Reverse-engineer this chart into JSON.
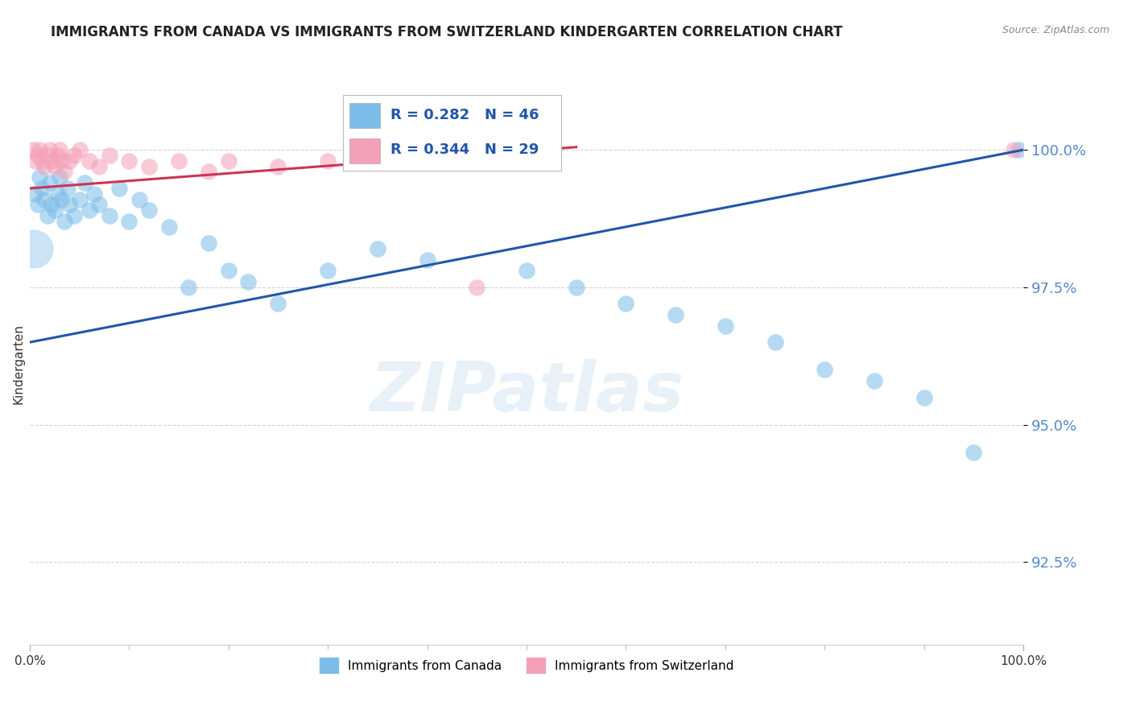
{
  "title": "IMMIGRANTS FROM CANADA VS IMMIGRANTS FROM SWITZERLAND KINDERGARTEN CORRELATION CHART",
  "source_text": "Source: ZipAtlas.com",
  "ylabel": "Kindergarten",
  "xmin": 0.0,
  "xmax": 100.0,
  "ymin": 91.0,
  "ymax": 101.2,
  "yticks": [
    92.5,
    95.0,
    97.5,
    100.0
  ],
  "ytick_labels": [
    "92.5%",
    "95.0%",
    "97.5%",
    "100.0%"
  ],
  "xtick_labels": [
    "0.0%",
    "100.0%"
  ],
  "blue_R": 0.282,
  "blue_N": 46,
  "pink_R": 0.344,
  "pink_N": 29,
  "blue_color": "#7bbce8",
  "pink_color": "#f4a0b8",
  "blue_line_color": "#2255aa",
  "pink_line_color": "#cc3355",
  "legend_blue": "Immigrants from Canada",
  "legend_pink": "Immigrants from Switzerland",
  "blue_scatter_x": [
    0.5,
    0.8,
    1.0,
    1.2,
    1.5,
    1.8,
    2.0,
    2.2,
    2.5,
    2.8,
    3.0,
    3.2,
    3.5,
    3.8,
    4.0,
    4.5,
    5.0,
    5.5,
    6.0,
    6.5,
    7.0,
    8.0,
    9.0,
    10.0,
    11.0,
    12.0,
    14.0,
    16.0,
    18.0,
    20.0,
    22.0,
    25.0,
    30.0,
    35.0,
    40.0,
    50.0,
    55.0,
    60.0,
    65.0,
    70.0,
    75.0,
    80.0,
    85.0,
    90.0,
    95.0,
    99.5
  ],
  "blue_scatter_y": [
    99.2,
    99.0,
    99.5,
    99.3,
    99.1,
    98.8,
    99.4,
    99.0,
    98.9,
    99.2,
    99.5,
    99.1,
    98.7,
    99.3,
    99.0,
    98.8,
    99.1,
    99.4,
    98.9,
    99.2,
    99.0,
    98.8,
    99.3,
    98.7,
    99.1,
    98.9,
    98.6,
    97.5,
    98.3,
    97.8,
    97.6,
    97.2,
    97.8,
    98.2,
    98.0,
    97.8,
    97.5,
    97.2,
    97.0,
    96.8,
    96.5,
    96.0,
    95.8,
    95.5,
    94.5,
    100.0
  ],
  "blue_outlier_x": [
    0.4
  ],
  "blue_outlier_y": [
    98.2
  ],
  "blue_outlier_size": 1200,
  "pink_scatter_x": [
    0.3,
    0.6,
    0.8,
    1.0,
    1.2,
    1.5,
    1.8,
    2.0,
    2.2,
    2.5,
    2.8,
    3.0,
    3.2,
    3.5,
    4.0,
    4.5,
    5.0,
    6.0,
    7.0,
    8.0,
    10.0,
    12.0,
    15.0,
    18.0,
    20.0,
    25.0,
    30.0,
    45.0,
    99.0
  ],
  "pink_scatter_y": [
    100.0,
    99.8,
    99.9,
    100.0,
    99.8,
    99.7,
    99.9,
    100.0,
    99.8,
    99.7,
    99.9,
    100.0,
    99.8,
    99.6,
    99.8,
    99.9,
    100.0,
    99.8,
    99.7,
    99.9,
    99.8,
    99.7,
    99.8,
    99.6,
    99.8,
    99.7,
    99.8,
    97.5,
    100.0
  ],
  "blue_line_x0": 0.0,
  "blue_line_x1": 100.0,
  "blue_line_y0": 96.5,
  "blue_line_y1": 100.0,
  "pink_line_x0": 0.0,
  "pink_line_x1": 55.0,
  "pink_line_y0": 99.3,
  "pink_line_y1": 100.05,
  "title_fontsize": 12,
  "axis_label_fontsize": 11,
  "tick_fontsize": 11,
  "legend_fontsize": 11,
  "background_color": "#ffffff",
  "grid_color": "#aaaaaa",
  "ytick_color": "#5588cc"
}
